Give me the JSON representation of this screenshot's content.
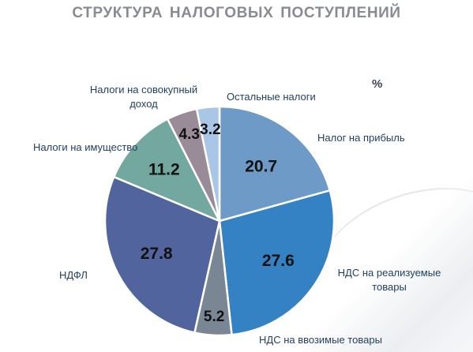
{
  "title": "СТРУКТУРА НАЛОГОВЫХ  ПОСТУПЛЕНИЙ",
  "unit_label": "%",
  "chart_data": {
    "type": "pie",
    "title": "СТРУКТУРА НАЛОГОВЫХ  ПОСТУПЛЕНИЙ",
    "unit": "%",
    "start_angle_deg": 0,
    "direction": "clockwise",
    "slices": [
      {
        "label": "Налог на прибыль",
        "value": 20.7,
        "color": "#6d9ac6"
      },
      {
        "label": "НДС на реализуемые товары",
        "value": 27.6,
        "color": "#3482c4"
      },
      {
        "label": "НДС на ввозимые товары",
        "value": 5.2,
        "color": "#7a8693"
      },
      {
        "label": "НДФЛ",
        "value": 27.8,
        "color": "#52649e"
      },
      {
        "label": "Налоги на имущество",
        "value": 11.2,
        "color": "#72a8a0"
      },
      {
        "label": "Налоги на совокупный доход",
        "value": 4.3,
        "color": "#9a8b98"
      },
      {
        "label": "Остальные налоги",
        "value": 3.2,
        "color": "#a9c6e6"
      }
    ]
  }
}
